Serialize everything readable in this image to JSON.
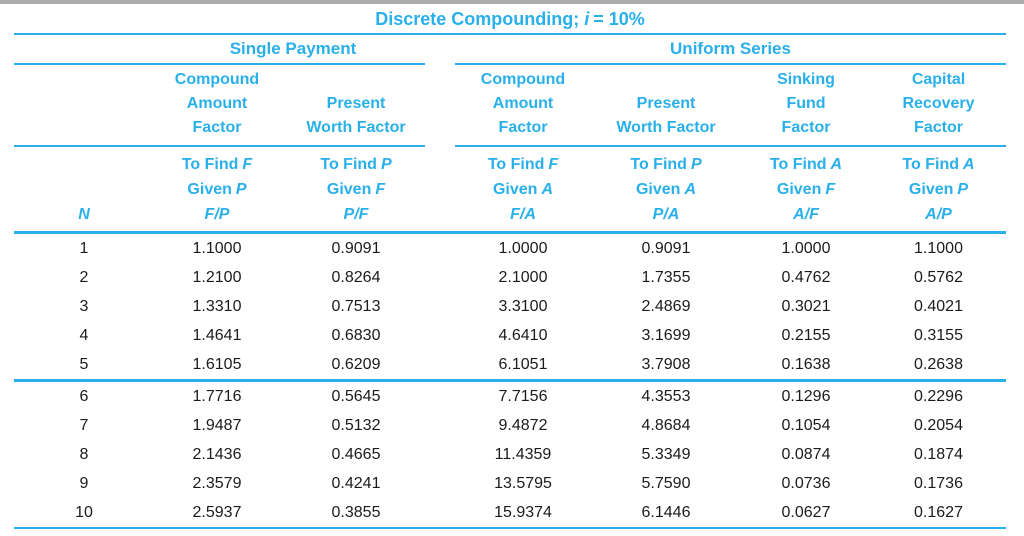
{
  "title": {
    "pre": "Discrete Compounding;",
    "i": "i",
    "post": "= 10%"
  },
  "groups": [
    {
      "label": "Single Payment"
    },
    {
      "label": "Uniform Series"
    }
  ],
  "columns": {
    "n_label": "N",
    "subheads": [
      "Compound\nAmount\nFactor",
      "Present\nWorth Factor",
      "Compound\nAmount\nFactor",
      "Present\nWorth Factor",
      "Sinking\nFund\nFactor",
      "Capital\nRecovery\nFactor"
    ],
    "tofind": [
      {
        "find": "To Find",
        "find_sym": "F",
        "given": "Given",
        "given_sym": "P",
        "ratio": "F/P"
      },
      {
        "find": "To Find",
        "find_sym": "P",
        "given": "Given",
        "given_sym": "F",
        "ratio": "P/F"
      },
      {
        "find": "To Find",
        "find_sym": "F",
        "given": "Given",
        "given_sym": "A",
        "ratio": "F/A"
      },
      {
        "find": "To Find",
        "find_sym": "P",
        "given": "Given",
        "given_sym": "A",
        "ratio": "P/A"
      },
      {
        "find": "To Find",
        "find_sym": "A",
        "given": "Given",
        "given_sym": "F",
        "ratio": "A/F"
      },
      {
        "find": "To Find",
        "find_sym": "A",
        "given": "Given",
        "given_sym": "P",
        "ratio": "A/P"
      }
    ]
  },
  "chart_data": {
    "type": "table",
    "title": "Discrete Compounding; i = 10%",
    "column_groups": [
      {
        "label": "Single Payment",
        "columns": [
          "F/P",
          "P/F"
        ]
      },
      {
        "label": "Uniform Series",
        "columns": [
          "F/A",
          "P/A",
          "A/F",
          "A/P"
        ]
      }
    ],
    "columns": [
      "N",
      "F/P",
      "P/F",
      "F/A",
      "P/A",
      "A/F",
      "A/P"
    ],
    "rows": [
      [
        "1",
        "1.1000",
        "0.9091",
        "1.0000",
        "0.9091",
        "1.0000",
        "1.1000"
      ],
      [
        "2",
        "1.2100",
        "0.8264",
        "2.1000",
        "1.7355",
        "0.4762",
        "0.5762"
      ],
      [
        "3",
        "1.3310",
        "0.7513",
        "3.3100",
        "2.4869",
        "0.3021",
        "0.4021"
      ],
      [
        "4",
        "1.4641",
        "0.6830",
        "4.6410",
        "3.1699",
        "0.2155",
        "0.3155"
      ],
      [
        "5",
        "1.6105",
        "0.6209",
        "6.1051",
        "3.7908",
        "0.1638",
        "0.2638"
      ],
      [
        "6",
        "1.7716",
        "0.5645",
        "7.7156",
        "4.3553",
        "0.1296",
        "0.2296"
      ],
      [
        "7",
        "1.9487",
        "0.5132",
        "9.4872",
        "4.8684",
        "0.1054",
        "0.2054"
      ],
      [
        "8",
        "2.1436",
        "0.4665",
        "11.4359",
        "5.3349",
        "0.0874",
        "0.1874"
      ],
      [
        "9",
        "2.3579",
        "0.4241",
        "13.5795",
        "5.7590",
        "0.0736",
        "0.1736"
      ],
      [
        "10",
        "2.5937",
        "0.3855",
        "15.9374",
        "6.1446",
        "0.0627",
        "0.1627"
      ]
    ]
  },
  "colors": {
    "accent": "#29B0EA",
    "top_bar": "#ACACAC",
    "text": "#1B1B1B"
  }
}
